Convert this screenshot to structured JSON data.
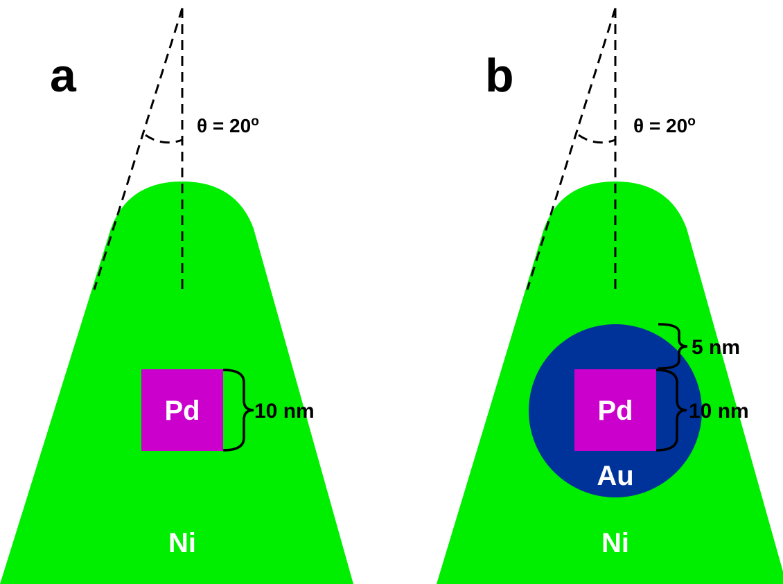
{
  "panels": [
    {
      "label": "a",
      "angle_symbol": "θ = 20",
      "angle_degree": "o",
      "core_label": "Pd",
      "core_size": "10 nm",
      "body_label": "Ni",
      "shell_label": "",
      "shell_size": ""
    },
    {
      "label": "b",
      "angle_symbol": "θ = 20",
      "angle_degree": "o",
      "core_label": "Pd",
      "core_size": "10 nm",
      "body_label": "Ni",
      "shell_label": "Au",
      "shell_size": "5 nm"
    }
  ],
  "colors": {
    "tip": "#00ee00",
    "core": "#cc00cc",
    "shell": "#003399",
    "background": "#ffffff",
    "text_dark": "#000000",
    "text_light": "#ffffff"
  }
}
